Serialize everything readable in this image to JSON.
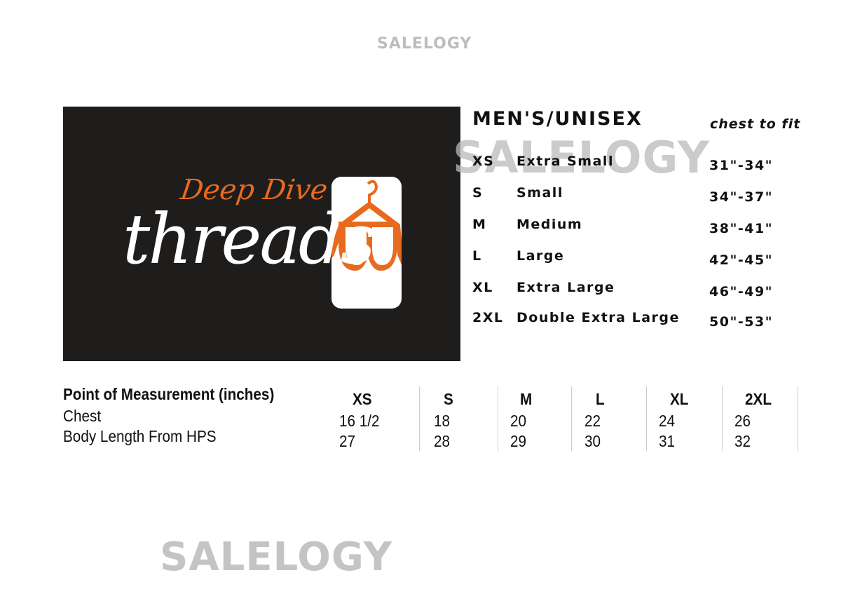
{
  "watermark": "SALELOGY",
  "logo": {
    "line1": "Deep Dive",
    "line2": "threads",
    "icon": "hanger-dive-mask-icon",
    "colors": {
      "background": "#1f1c1c",
      "accent": "#e86a1e"
    }
  },
  "size_chart": {
    "title": "MEN'S/UNISEX",
    "column_label": "chest to fit",
    "rows": [
      {
        "code": "XS",
        "name": "Extra Small",
        "range": "31\"-34\""
      },
      {
        "code": "S",
        "name": "Small",
        "range": "34\"-37\""
      },
      {
        "code": "M",
        "name": "Medium",
        "range": "38\"-41\""
      },
      {
        "code": "L",
        "name": "Large",
        "range": "42\"-45\""
      },
      {
        "code": "XL",
        "name": "Extra Large",
        "range": "46\"-49\""
      },
      {
        "code": "2XL",
        "name": "Double Extra Large",
        "range": "50\"-53\""
      }
    ]
  },
  "measurements": {
    "header": "Point of Measurement (inches)",
    "sizes": [
      "XS",
      "S",
      "M",
      "L",
      "XL",
      "2XL"
    ],
    "rows": [
      {
        "label": "Chest",
        "values": [
          "16 1/2",
          "18",
          "20",
          "22",
          "24",
          "26"
        ]
      },
      {
        "label": "Body Length From HPS",
        "values": [
          "27",
          "28",
          "29",
          "30",
          "31",
          "32"
        ]
      }
    ]
  }
}
